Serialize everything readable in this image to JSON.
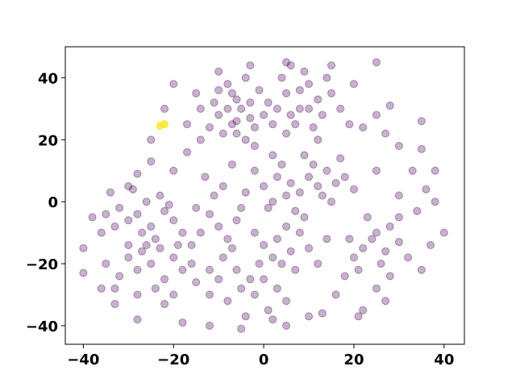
{
  "chart_data": {
    "type": "scatter",
    "title": "",
    "xlabel": "",
    "ylabel": "",
    "xlim": [
      -44,
      44.5
    ],
    "ylim": [
      -46,
      50
    ],
    "xticks": [
      -40,
      -20,
      0,
      20,
      40
    ],
    "yticks": [
      -40,
      -20,
      0,
      20,
      40
    ],
    "xtick_labels": [
      "−40",
      "−20",
      "0",
      "20",
      "40"
    ],
    "ytick_labels": [
      "−40",
      "−20",
      "0",
      "20",
      "40"
    ],
    "grid": false,
    "legend": "none",
    "series": [
      {
        "color": "#440154",
        "alpha": 0.3,
        "points": [
          [
            -8,
            30
          ],
          [
            -6,
            26
          ],
          [
            -3,
            32
          ],
          [
            -2,
            24
          ],
          [
            -10,
            28
          ],
          [
            -7,
            35
          ],
          [
            -4,
            20
          ],
          [
            0,
            28
          ],
          [
            -12,
            24
          ],
          [
            -1,
            36
          ],
          [
            -9,
            22
          ],
          [
            -5,
            30
          ],
          [
            -3,
            27
          ],
          [
            -6,
            33
          ],
          [
            -11,
            32
          ],
          [
            2,
            25
          ],
          [
            -8,
            38
          ],
          [
            -4,
            40
          ],
          [
            -14,
            30
          ],
          [
            -2,
            18
          ],
          [
            -7,
            25
          ],
          [
            1,
            32
          ],
          [
            -10,
            36
          ],
          [
            -6,
            22
          ],
          [
            5,
            35
          ],
          [
            8,
            30
          ],
          [
            10,
            38
          ],
          [
            6,
            28
          ],
          [
            12,
            33
          ],
          [
            4,
            40
          ],
          [
            9,
            42
          ],
          [
            7,
            25
          ],
          [
            13,
            28
          ],
          [
            3,
            30
          ],
          [
            11,
            24
          ],
          [
            8,
            36
          ],
          [
            15,
            35
          ],
          [
            6,
            44
          ],
          [
            14,
            40
          ],
          [
            10,
            30
          ],
          [
            17,
            30
          ],
          [
            12,
            20
          ],
          [
            5,
            22
          ],
          [
            19,
            25
          ],
          [
            0,
            5
          ],
          [
            3,
            8
          ],
          [
            5,
            2
          ],
          [
            2,
            0
          ],
          [
            -2,
            10
          ],
          [
            6,
            6
          ],
          [
            4,
            12
          ],
          [
            8,
            3
          ],
          [
            1,
            -2
          ],
          [
            10,
            8
          ],
          [
            12,
            5
          ],
          [
            14,
            10
          ],
          [
            13,
            2
          ],
          [
            16,
            6
          ],
          [
            11,
            12
          ],
          [
            15,
            0
          ],
          [
            18,
            8
          ],
          [
            9,
            15
          ],
          [
            7,
            -3
          ],
          [
            17,
            14
          ],
          [
            20,
            4
          ],
          [
            -4,
            3
          ],
          [
            2,
            15
          ],
          [
            -28,
            -4
          ],
          [
            -25,
            -8
          ],
          [
            -22,
            -3
          ],
          [
            -30,
            -6
          ],
          [
            -26,
            0
          ],
          [
            -24,
            -12
          ],
          [
            -32,
            -2
          ],
          [
            -20,
            -6
          ],
          [
            -27,
            -10
          ],
          [
            -35,
            -4
          ],
          [
            -23,
            2
          ],
          [
            -29,
            4
          ],
          [
            -18,
            -10
          ],
          [
            -33,
            -8
          ],
          [
            -26,
            -14
          ],
          [
            -38,
            -5
          ],
          [
            -21,
            -1
          ],
          [
            -25,
            -20
          ],
          [
            -20,
            -18
          ],
          [
            -28,
            -22
          ],
          [
            -22,
            -25
          ],
          [
            -18,
            -22
          ],
          [
            -30,
            -18
          ],
          [
            -24,
            -28
          ],
          [
            -16,
            -20
          ],
          [
            -27,
            -16
          ],
          [
            -20,
            -30
          ],
          [
            -32,
            -24
          ],
          [
            -15,
            -26
          ],
          [
            -23,
            -15
          ],
          [
            -35,
            -20
          ],
          [
            -28,
            -30
          ],
          [
            -19,
            -14
          ],
          [
            -12,
            -22
          ],
          [
            -33,
            -28
          ],
          [
            3,
            -12
          ],
          [
            6,
            -16
          ],
          [
            0,
            -14
          ],
          [
            8,
            -10
          ],
          [
            4,
            -20
          ],
          [
            10,
            -15
          ],
          [
            -2,
            -10
          ],
          [
            7,
            -22
          ],
          [
            2,
            -18
          ],
          [
            12,
            -20
          ],
          [
            5,
            -8
          ],
          [
            -1,
            -20
          ],
          [
            9,
            -5
          ],
          [
            14,
            -12
          ],
          [
            -6,
            -22
          ],
          [
            -3,
            -25
          ],
          [
            -9,
            -18
          ],
          [
            -5,
            -28
          ],
          [
            0,
            -25
          ],
          [
            -10,
            -25
          ],
          [
            -2,
            -30
          ],
          [
            -7,
            -15
          ],
          [
            -12,
            -30
          ],
          [
            3,
            -28
          ],
          [
            -8,
            -32
          ],
          [
            1,
            -35
          ],
          [
            5,
            -32
          ],
          [
            -4,
            -37
          ],
          [
            -10,
            -8
          ],
          [
            -12,
            -4
          ],
          [
            -8,
            -12
          ],
          [
            -14,
            -10
          ],
          [
            -6,
            -6
          ],
          [
            -15,
            -2
          ],
          [
            -11,
            2
          ],
          [
            -5,
            -2
          ],
          [
            -16,
            -14
          ],
          [
            -9,
            5
          ],
          [
            -13,
            8
          ],
          [
            -7,
            12
          ],
          [
            22,
            -15
          ],
          [
            25,
            -10
          ],
          [
            20,
            -18
          ],
          [
            24,
            -12
          ],
          [
            27,
            -16
          ],
          [
            21,
            -22
          ],
          [
            28,
            -8
          ],
          [
            19,
            -12
          ],
          [
            26,
            -20
          ],
          [
            30,
            -13
          ],
          [
            23,
            -5
          ],
          [
            18,
            -24
          ],
          [
            32,
            -18
          ],
          [
            25,
            -28
          ],
          [
            22,
            -35
          ],
          [
            -40,
            -15
          ],
          [
            -40,
            -23
          ],
          [
            -36,
            -28
          ],
          [
            -33,
            -33
          ],
          [
            -28,
            -38
          ],
          [
            -18,
            -39
          ],
          [
            -12,
            -40
          ],
          [
            -5,
            -41
          ],
          [
            2,
            -38
          ],
          [
            5,
            -40
          ],
          [
            10,
            -37
          ],
          [
            13,
            -36
          ],
          [
            21,
            -37
          ],
          [
            27,
            -32
          ],
          [
            35,
            -22
          ],
          [
            37,
            -14
          ],
          [
            40,
            -10
          ],
          [
            38,
            0
          ],
          [
            36,
            4
          ],
          [
            33,
            10
          ],
          [
            35,
            17
          ],
          [
            38,
            10
          ],
          [
            30,
            18
          ],
          [
            27,
            22
          ],
          [
            25,
            28
          ],
          [
            35,
            26
          ],
          [
            28,
            31
          ],
          [
            22,
            24
          ],
          [
            25,
            45
          ],
          [
            20,
            38
          ],
          [
            -15,
            35
          ],
          [
            -20,
            38
          ],
          [
            -22,
            30
          ],
          [
            -25,
            20
          ],
          [
            -28,
            9
          ],
          [
            -30,
            5
          ],
          [
            -34,
            3
          ],
          [
            -36,
            -10
          ],
          [
            -20,
            10
          ],
          [
            -17,
            16
          ],
          [
            -14,
            20
          ],
          [
            -10,
            42
          ],
          [
            -3,
            44
          ],
          [
            5,
            45
          ],
          [
            15,
            44
          ],
          [
            -25,
            13
          ],
          [
            30,
            -5
          ],
          [
            34,
            -3
          ],
          [
            28,
            -24
          ],
          [
            16,
            -30
          ],
          [
            -22,
            -33
          ],
          [
            -30,
            -14
          ],
          [
            30,
            2
          ],
          [
            25,
            10
          ],
          [
            -17,
            25
          ]
        ]
      },
      {
        "color": "#fde725",
        "alpha": 0.8,
        "points": [
          [
            -23,
            24.5
          ],
          [
            -22,
            25
          ]
        ]
      }
    ]
  }
}
